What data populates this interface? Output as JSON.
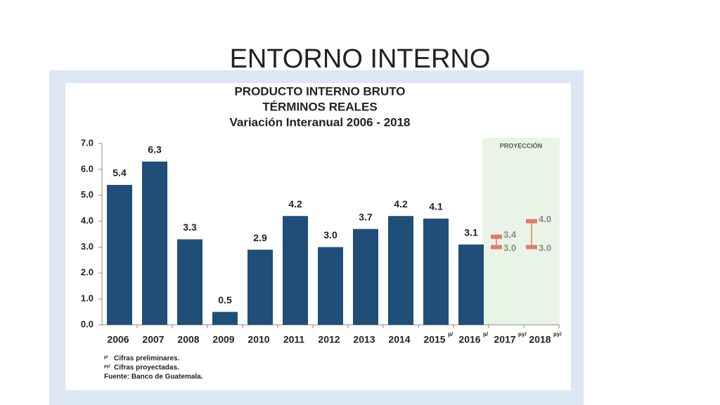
{
  "slide_title": "ENTORNO INTERNO",
  "chart_data": {
    "type": "bar",
    "title": [
      "PRODUCTO INTERNO BRUTO",
      "TÉRMINOS REALES",
      "Variación Interanual 2006 - 2018"
    ],
    "categories": [
      "2006",
      "2007",
      "2008",
      "2009",
      "2010",
      "2011",
      "2012",
      "2013",
      "2014",
      "2015",
      "2016",
      "2017",
      "2018"
    ],
    "category_notes": [
      null,
      null,
      null,
      null,
      null,
      null,
      null,
      null,
      null,
      "p/",
      "p/",
      "py/",
      "py/"
    ],
    "values": [
      5.4,
      6.3,
      3.3,
      0.5,
      2.9,
      4.2,
      3.0,
      3.7,
      4.2,
      4.1,
      3.1,
      null,
      null
    ],
    "value_labels": [
      "5.4",
      "6.3",
      "3.3",
      "0.5",
      "2.9",
      "4.2",
      "3.0",
      "3.7",
      "4.2",
      "4.1",
      "3.1",
      null,
      null
    ],
    "color": "#1f4e79",
    "projection": {
      "label": "PROYECCIÓN",
      "color": "#e07b6a",
      "low": [
        null,
        null,
        null,
        null,
        null,
        null,
        null,
        null,
        null,
        null,
        null,
        3.0,
        3.0
      ],
      "high": [
        null,
        null,
        null,
        null,
        null,
        null,
        null,
        null,
        null,
        null,
        null,
        3.4,
        4.0
      ],
      "low_labels": [
        null,
        null,
        null,
        null,
        null,
        null,
        null,
        null,
        null,
        null,
        null,
        "3.0",
        "3.0"
      ],
      "high_labels": [
        null,
        null,
        null,
        null,
        null,
        null,
        null,
        null,
        null,
        null,
        null,
        "3.4",
        "4.0"
      ]
    },
    "ylim": [
      0,
      7
    ],
    "yticks": [
      {
        "value": 0,
        "label": "0.0"
      },
      {
        "value": 1,
        "label": "1.0"
      },
      {
        "value": 2,
        "label": "2.0"
      },
      {
        "value": 3,
        "label": "3.0"
      },
      {
        "value": 4,
        "label": "4.0"
      },
      {
        "value": 5,
        "label": "5.0"
      },
      {
        "value": 6,
        "label": "6.0"
      },
      {
        "value": 7,
        "label": "7.0"
      }
    ],
    "footnotes": [
      {
        "mark": "p/",
        "text": "Cifras preliminares."
      },
      {
        "mark": "py/",
        "text": "Cifras proyectadas."
      }
    ],
    "source": "Fuente: Banco de Guatemala."
  }
}
